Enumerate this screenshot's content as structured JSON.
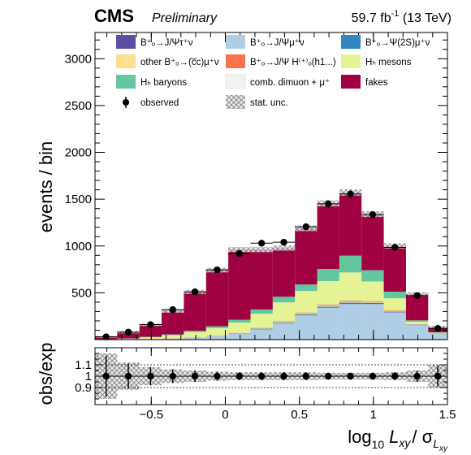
{
  "header": {
    "experiment": "CMS",
    "status": "Preliminary",
    "luminosity": "59.7 fb",
    "lumi_exp": "-1",
    "energy": " (13 TeV)"
  },
  "colors": {
    "bc_jpsi_tau": "#5d4ea2",
    "bc_jpsi_mu": "#afcde4",
    "bc_psi2s_mu": "#2f87c3",
    "other_bc": "#fde08f",
    "bc_jpsi_hc": "#fb7449",
    "hb_mesons": "#e6f394",
    "hb_baryons": "#63c79f",
    "comb_dimuon": "#f2f2f2",
    "fakes": "#9f0141"
  },
  "legend": [
    {
      "key": "bc_jpsi_tau",
      "label": "B⁺ₒ→J/Ψτ⁺ν",
      "kind": "fill"
    },
    {
      "key": "bc_jpsi_mu",
      "label": "B⁺ₒ→J/Ψμ⁺ν",
      "kind": "fill"
    },
    {
      "key": "bc_psi2s_mu",
      "label": "B⁺ₒ→Ψ(2S)μ⁺ν",
      "kind": "fill"
    },
    {
      "key": "other_bc",
      "label": "other B⁺ₒ→(c̅c)μ⁺ν",
      "kind": "fill"
    },
    {
      "key": "bc_jpsi_hc",
      "label": "B⁺ₒ→J/Ψ H⁽⁺⁾ₒ(h1...)",
      "kind": "fill"
    },
    {
      "key": "hb_mesons",
      "label": "Hₕ mesons",
      "kind": "fill"
    },
    {
      "key": "hb_baryons",
      "label": "Hₕ baryons",
      "kind": "fill"
    },
    {
      "key": "comb_dimuon",
      "label": "comb. dimuon + μ⁺",
      "kind": "fill"
    },
    {
      "key": "fakes",
      "label": "fakes",
      "kind": "fill"
    },
    {
      "key": "observed",
      "label": "observed",
      "kind": "marker"
    },
    {
      "key": "stat",
      "label": "stat. unc.",
      "kind": "hatch"
    }
  ],
  "axes": {
    "x_title_main": "log",
    "x_title_sub": "10",
    "x_title_var": "L",
    "x_title_var_sub": "xy",
    "x_title_slash": "/ σ",
    "x_title_sigma_sub": "L",
    "x_title_sigma_subsub": "xy",
    "y_title_main": "events / bin",
    "y_title_ratio": "obs/exp"
  },
  "chart_data": [
    {
      "type": "bar",
      "stacked": true,
      "xlim": [
        -0.88,
        1.5
      ],
      "ylim": [
        0,
        3280
      ],
      "xlabel": "log10 Lxy/ σLxy",
      "ylabel": "events / bin",
      "bin_edges": [
        -0.88,
        -0.73,
        -0.58,
        -0.43,
        -0.28,
        -0.13,
        0.02,
        0.17,
        0.32,
        0.47,
        0.62,
        0.77,
        0.92,
        1.07,
        1.22,
        1.37,
        1.5
      ],
      "series": [
        {
          "name": "B⁺ₒ→J/Ψμ⁺ν",
          "key": "bc_jpsi_mu",
          "values": [
            0,
            0,
            5,
            10,
            20,
            35,
            60,
            110,
            175,
            260,
            340,
            380,
            380,
            290,
            155,
            65
          ]
        },
        {
          "name": "B⁺ₒ→J/Ψτ⁺ν",
          "key": "bc_jpsi_tau",
          "values": [
            0,
            0,
            0,
            0,
            1,
            1,
            2,
            3,
            4,
            5,
            6,
            7,
            6,
            4,
            2,
            1
          ]
        },
        {
          "name": "B⁺ₒ→Ψ(2S)μ⁺ν",
          "key": "bc_psi2s_mu",
          "values": [
            0,
            0,
            0,
            1,
            1,
            2,
            3,
            4,
            5,
            6,
            7,
            8,
            7,
            5,
            3,
            1
          ]
        },
        {
          "name": "other B⁺ₒ→(c̅c)μ⁺ν",
          "key": "other_bc",
          "values": [
            0,
            0,
            0,
            1,
            2,
            3,
            4,
            6,
            8,
            10,
            12,
            12,
            10,
            7,
            3,
            1
          ]
        },
        {
          "name": "B⁺ₒ→J/Ψ H⁽⁺⁾ₒ(h1...)",
          "key": "bc_jpsi_hc",
          "values": [
            0,
            0,
            0,
            1,
            1,
            2,
            3,
            4,
            6,
            8,
            10,
            10,
            8,
            6,
            3,
            1
          ]
        },
        {
          "name": "Hₕ mesons",
          "key": "hb_mesons",
          "values": [
            5,
            10,
            20,
            35,
            55,
            80,
            110,
            150,
            200,
            230,
            250,
            300,
            210,
            130,
            25,
            5
          ]
        },
        {
          "name": "Hₕ baryons",
          "key": "hb_baryons",
          "values": [
            0,
            3,
            5,
            8,
            15,
            20,
            30,
            45,
            60,
            70,
            130,
            180,
            120,
            70,
            15,
            5
          ]
        },
        {
          "name": "comb. dimuon + μ⁺",
          "key": "comb_dimuon",
          "values": [
            0,
            0,
            0,
            0,
            0,
            0,
            0,
            0,
            0,
            0,
            0,
            0,
            0,
            0,
            0,
            0
          ]
        },
        {
          "name": "fakes",
          "key": "fakes",
          "values": [
            25,
            67,
            130,
            250,
            415,
            600,
            750,
            640,
            520,
            600,
            700,
            675,
            600,
            490,
            280,
            55
          ]
        }
      ],
      "observed": {
        "name": "observed",
        "x": [
          -0.805,
          -0.655,
          -0.505,
          -0.355,
          -0.205,
          -0.055,
          0.095,
          0.245,
          0.395,
          0.545,
          0.695,
          0.845,
          0.995,
          1.145,
          1.295,
          1.435
        ],
        "y": [
          30,
          80,
          160,
          320,
          510,
          745,
          920,
          1030,
          1040,
          1205,
          1450,
          1555,
          1335,
          985,
          470,
          120
        ]
      }
    },
    {
      "type": "scatter",
      "xlim": [
        -0.88,
        1.5
      ],
      "ylim": [
        0.75,
        1.25
      ],
      "ylabel": "obs/exp",
      "x": [
        -0.805,
        -0.655,
        -0.505,
        -0.355,
        -0.205,
        -0.055,
        0.095,
        0.245,
        0.395,
        0.545,
        0.695,
        0.845,
        0.995,
        1.145,
        1.295,
        1.435
      ],
      "y": [
        1.0,
        1.0,
        1.0,
        1.0,
        1.0,
        1.0,
        1.0,
        1.0,
        1.0,
        1.0,
        1.0,
        1.0,
        1.0,
        1.0,
        1.0,
        1.0
      ],
      "yerr": [
        0.18,
        0.11,
        0.08,
        0.06,
        0.05,
        0.04,
        0.035,
        0.035,
        0.035,
        0.035,
        0.03,
        0.03,
        0.03,
        0.035,
        0.05,
        0.09
      ],
      "stat_unc": [
        0.2,
        0.12,
        0.08,
        0.06,
        0.05,
        0.04,
        0.035,
        0.035,
        0.035,
        0.035,
        0.03,
        0.03,
        0.03,
        0.035,
        0.05,
        0.1
      ],
      "reference_lines": [
        0.9,
        1.0,
        1.1
      ]
    }
  ]
}
